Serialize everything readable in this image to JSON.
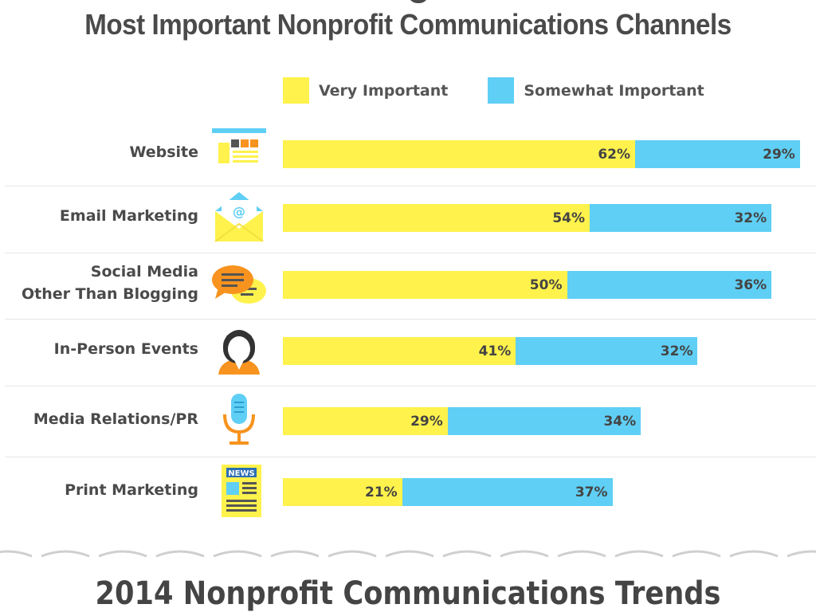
{
  "chart_data": {
    "type": "bar",
    "orientation": "horizontal",
    "stacked": true,
    "title": "Most Important Nonprofit Communications Channels",
    "categories": [
      "Website",
      "Email Marketing",
      "Social Media Other Than Blogging",
      "In-Person Events",
      "Media Relations/PR",
      "Print Marketing"
    ],
    "category_lines": [
      [
        "Website"
      ],
      [
        "Email Marketing"
      ],
      [
        "Social Media",
        "Other Than Blogging"
      ],
      [
        "In-Person Events"
      ],
      [
        "Media Relations/PR"
      ],
      [
        "Print Marketing"
      ]
    ],
    "icons": [
      "website-icon",
      "email-icon",
      "chat-bubbles-icon",
      "person-icon",
      "microphone-icon",
      "newspaper-icon"
    ],
    "series": [
      {
        "name": "Very Important",
        "color": "#fff24c",
        "values": [
          62,
          54,
          50,
          41,
          29,
          21
        ],
        "labels": [
          "62%",
          "54%",
          "50%",
          "41%",
          "29%",
          "21%"
        ]
      },
      {
        "name": "Somewhat Important",
        "color": "#5fcff5",
        "values": [
          29,
          32,
          36,
          32,
          34,
          37
        ],
        "labels": [
          "29%",
          "32%",
          "36%",
          "32%",
          "34%",
          "37%"
        ]
      }
    ],
    "legend_position": "top",
    "grid": false
  },
  "footer": {
    "subtitle": "2014 Nonprofit Communications Trends"
  }
}
